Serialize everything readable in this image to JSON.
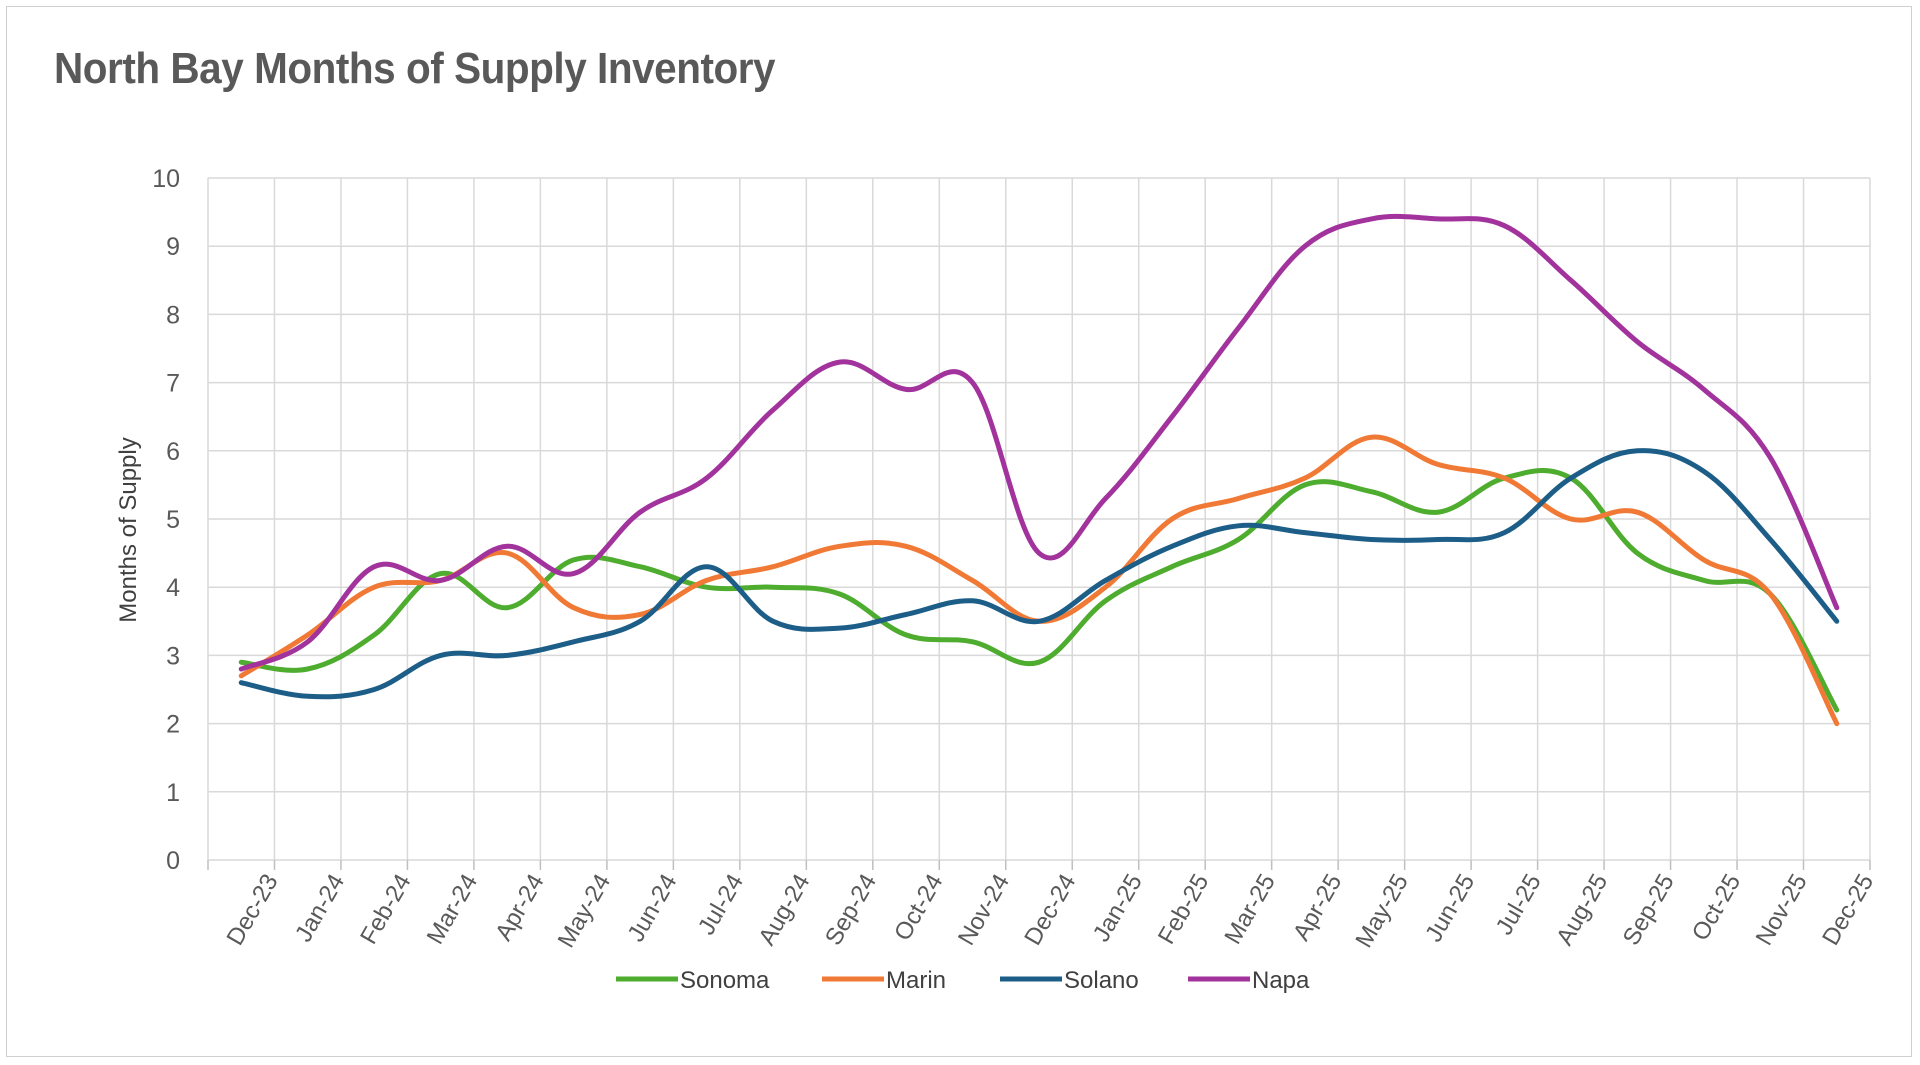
{
  "chart_data": {
    "type": "line",
    "title": "North Bay Months of Supply Inventory",
    "xlabel": "",
    "ylabel": "Months of Supply",
    "ylim": [
      0,
      10
    ],
    "yticks": [
      "0",
      "1",
      "2",
      "3",
      "4",
      "5",
      "6",
      "7",
      "8",
      "9",
      "10"
    ],
    "grid": true,
    "legend_position": "bottom",
    "categories": [
      "Dec-23",
      "Jan-24",
      "Feb-24",
      "Mar-24",
      "Apr-24",
      "May-24",
      "Jun-24",
      "Jul-24",
      "Aug-24",
      "Sep-24",
      "Oct-24",
      "Nov-24",
      "Dec-24",
      "Jan-25",
      "Feb-25",
      "Mar-25",
      "Apr-25",
      "May-25",
      "Jun-25",
      "Jul-25",
      "Aug-25",
      "Sep-25",
      "Oct-25",
      "Nov-25",
      "Dec-25"
    ],
    "series": [
      {
        "name": "Sonoma",
        "color": "#4eac2f",
        "values": [
          2.9,
          2.8,
          3.3,
          4.2,
          3.7,
          4.4,
          4.3,
          4.0,
          4.0,
          3.9,
          3.3,
          3.2,
          2.9,
          3.8,
          4.3,
          4.7,
          5.5,
          5.4,
          5.1,
          5.6,
          5.6,
          4.5,
          4.1,
          3.9,
          2.2
        ]
      },
      {
        "name": "Marin",
        "color": "#f07a35",
        "values": [
          2.7,
          3.3,
          4.0,
          4.1,
          4.5,
          3.7,
          3.6,
          4.1,
          4.3,
          4.6,
          4.6,
          4.1,
          3.5,
          4.0,
          5.0,
          5.3,
          5.6,
          6.2,
          5.8,
          5.6,
          5.0,
          5.1,
          4.4,
          3.9,
          2.0
        ]
      },
      {
        "name": "Solano",
        "color": "#1d5e88",
        "values": [
          2.6,
          2.4,
          2.5,
          3.0,
          3.0,
          3.2,
          3.5,
          4.3,
          3.5,
          3.4,
          3.6,
          3.8,
          3.5,
          4.1,
          4.6,
          4.9,
          4.8,
          4.7,
          4.7,
          4.8,
          5.6,
          6.0,
          5.7,
          4.7,
          3.5
        ]
      },
      {
        "name": "Napa",
        "color": "#a2339d",
        "values": [
          2.8,
          3.2,
          4.3,
          4.1,
          4.6,
          4.2,
          5.1,
          5.6,
          6.6,
          7.3,
          6.9,
          7.0,
          4.5,
          5.3,
          6.5,
          7.8,
          9.0,
          9.4,
          9.4,
          9.3,
          8.5,
          7.6,
          6.9,
          5.9,
          3.7
        ]
      }
    ]
  }
}
